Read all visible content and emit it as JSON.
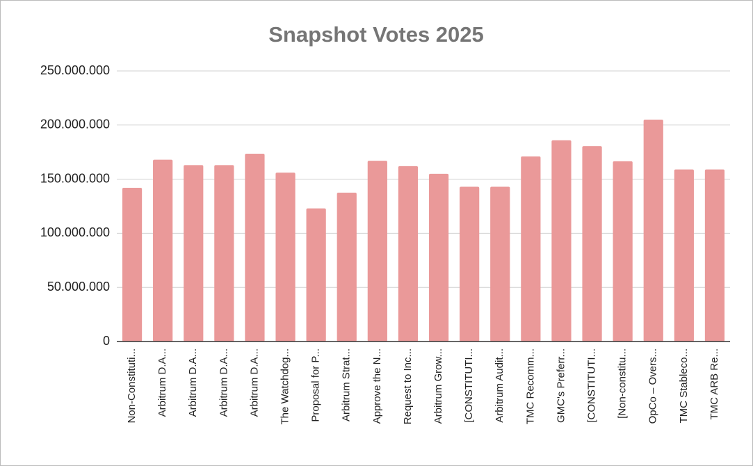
{
  "chart_data": {
    "type": "bar",
    "title": "Snapshot Votes 2025",
    "categories": [
      "Non-Constituti...",
      "Arbitrum D.A...",
      "Arbitrum D.A...",
      "Arbitrum D.A...",
      "Arbitrum D.A...",
      "The Watchdog...",
      "Proposal for P...",
      "Arbitrum Strat...",
      "Approve the N...",
      "Request to Inc...",
      "Arbitrum Grow...",
      "[CONSTITUTI...",
      "Arbitrum Audit...",
      "TMC Recomm...",
      "GMC's Preferr...",
      "[CONSTITUTI...",
      "[Non-constitu...",
      "OpCo – Overs...",
      "TMC Stableco...",
      "TMC ARB Re..."
    ],
    "values": [
      142000000,
      168000000,
      163000000,
      163000000,
      173500000,
      156000000,
      123000000,
      137500000,
      167000000,
      162000000,
      155000000,
      143000000,
      143000000,
      171000000,
      186000000,
      180500000,
      166500000,
      205000000,
      159000000,
      159000000
    ],
    "color": "#ea9999",
    "ylim": [
      0,
      250000000
    ],
    "yticks": [
      0,
      {
        "value": 50000000,
        "label": "50.000.000"
      },
      {
        "value": 100000000,
        "label": "100.000.000"
      },
      {
        "value": 150000000,
        "label": "150.000.000"
      },
      {
        "value": 200000000,
        "label": "200.000.000"
      },
      {
        "value": 250000000,
        "label": "250.000.000"
      }
    ],
    "grid": true
  }
}
